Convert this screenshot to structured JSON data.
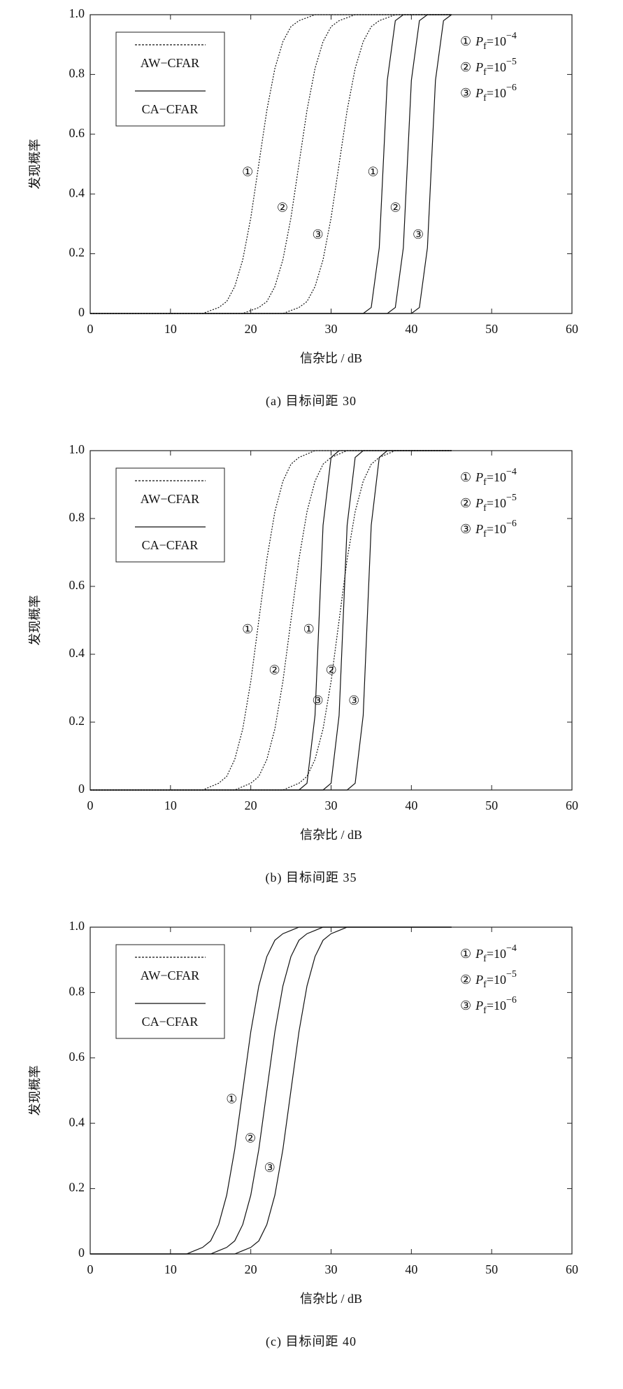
{
  "chart_data": [
    {
      "type": "line",
      "caption": "(a)  目标间距 30",
      "x_label": "信杂比 / dB",
      "y_label": "发现概率",
      "x": [
        0,
        1,
        2,
        3,
        4,
        5,
        6,
        7,
        8,
        9,
        10,
        11,
        12,
        13,
        14,
        15,
        16,
        17,
        18,
        19,
        20,
        21,
        22,
        23,
        24,
        25,
        26,
        27,
        28,
        29,
        30,
        31,
        32,
        33,
        34,
        35,
        36,
        37,
        38,
        39,
        40,
        41,
        42,
        43,
        44,
        45
      ],
      "xlim": [
        0,
        60
      ],
      "xticks": [
        0,
        10,
        20,
        30,
        40,
        50,
        60
      ],
      "ylim": [
        0,
        1
      ],
      "yticks": [
        0,
        0.2,
        0.4,
        0.6,
        0.8,
        {
          "value": 1,
          "label": "1.0"
        }
      ],
      "legend": [
        {
          "text": "AW−CFAR",
          "style": "dashed"
        },
        {
          "text": "CA−CFAR",
          "style": "solid"
        }
      ],
      "pf_legend": [
        {
          "marker": "①",
          "symbol": "P",
          "subscript": "f",
          "base": "=10",
          "exponent": "−4"
        },
        {
          "marker": "②",
          "symbol": "P",
          "subscript": "f",
          "base": "=10",
          "exponent": "−5"
        },
        {
          "marker": "③",
          "symbol": "P",
          "subscript": "f",
          "base": "=10",
          "exponent": "−6"
        }
      ],
      "series": [
        {
          "label": "①",
          "style": "dashed",
          "color": "#111",
          "values": [
            0,
            0,
            0,
            0,
            0,
            0,
            0,
            0,
            0,
            0,
            0,
            0,
            0,
            0,
            0,
            0.01,
            0.02,
            0.04,
            0.09,
            0.18,
            0.32,
            0.5,
            0.68,
            0.82,
            0.91,
            0.96,
            0.98,
            0.99,
            1,
            1,
            1,
            1,
            1,
            1,
            1,
            1,
            1,
            1,
            1,
            1,
            1,
            1,
            1,
            1,
            1,
            1
          ]
        },
        {
          "label": "②",
          "style": "dashed",
          "color": "#111",
          "values": [
            0,
            0,
            0,
            0,
            0,
            0,
            0,
            0,
            0,
            0,
            0,
            0,
            0,
            0,
            0,
            0,
            0,
            0,
            0,
            0,
            0.01,
            0.02,
            0.04,
            0.09,
            0.18,
            0.32,
            0.5,
            0.68,
            0.82,
            0.91,
            0.96,
            0.98,
            0.99,
            1,
            1,
            1,
            1,
            1,
            1,
            1,
            1,
            1,
            1,
            1,
            1,
            1
          ]
        },
        {
          "label": "③",
          "style": "dashed",
          "color": "#111",
          "values": [
            0,
            0,
            0,
            0,
            0,
            0,
            0,
            0,
            0,
            0,
            0,
            0,
            0,
            0,
            0,
            0,
            0,
            0,
            0,
            0,
            0,
            0,
            0,
            0,
            0,
            0.01,
            0.02,
            0.04,
            0.09,
            0.18,
            0.32,
            0.5,
            0.68,
            0.82,
            0.91,
            0.96,
            0.98,
            0.99,
            1,
            1,
            1,
            1,
            1,
            1,
            1,
            1
          ]
        },
        {
          "label": "①",
          "style": "solid",
          "color": "#111",
          "values": [
            0,
            0,
            0,
            0,
            0,
            0,
            0,
            0,
            0,
            0,
            0,
            0,
            0,
            0,
            0,
            0,
            0,
            0,
            0,
            0,
            0,
            0,
            0,
            0,
            0,
            0,
            0,
            0,
            0,
            0,
            0,
            0,
            0,
            0,
            0,
            0.02,
            0.22,
            0.78,
            0.98,
            1,
            1,
            1,
            1,
            1,
            1,
            1
          ]
        },
        {
          "label": "②",
          "style": "solid",
          "color": "#111",
          "values": [
            0,
            0,
            0,
            0,
            0,
            0,
            0,
            0,
            0,
            0,
            0,
            0,
            0,
            0,
            0,
            0,
            0,
            0,
            0,
            0,
            0,
            0,
            0,
            0,
            0,
            0,
            0,
            0,
            0,
            0,
            0,
            0,
            0,
            0,
            0,
            0,
            0,
            0,
            0.02,
            0.22,
            0.78,
            0.98,
            1,
            1,
            1,
            1
          ]
        },
        {
          "label": "③",
          "style": "solid",
          "color": "#111",
          "values": [
            0,
            0,
            0,
            0,
            0,
            0,
            0,
            0,
            0,
            0,
            0,
            0,
            0,
            0,
            0,
            0,
            0,
            0,
            0,
            0,
            0,
            0,
            0,
            0,
            0,
            0,
            0,
            0,
            0,
            0,
            0,
            0,
            0,
            0,
            0,
            0,
            0,
            0,
            0,
            0,
            0,
            0.02,
            0.22,
            0.78,
            0.98,
            1
          ]
        }
      ]
    },
    {
      "type": "line",
      "caption": "(b)  目标间距 35",
      "x_label": "信杂比 / dB",
      "y_label": "发现概率",
      "x": [
        0,
        1,
        2,
        3,
        4,
        5,
        6,
        7,
        8,
        9,
        10,
        11,
        12,
        13,
        14,
        15,
        16,
        17,
        18,
        19,
        20,
        21,
        22,
        23,
        24,
        25,
        26,
        27,
        28,
        29,
        30,
        31,
        32,
        33,
        34,
        35,
        36,
        37,
        38,
        39,
        40,
        41,
        42,
        43,
        44,
        45
      ],
      "xlim": [
        0,
        60
      ],
      "xticks": [
        0,
        10,
        20,
        30,
        40,
        50,
        60
      ],
      "ylim": [
        0,
        1
      ],
      "yticks": [
        0,
        0.2,
        0.4,
        0.6,
        0.8,
        {
          "value": 1,
          "label": "1.0"
        }
      ],
      "legend": [
        {
          "text": "AW−CFAR",
          "style": "dashed"
        },
        {
          "text": "CA−CFAR",
          "style": "solid"
        }
      ],
      "pf_legend": [
        {
          "marker": "①",
          "symbol": "P",
          "subscript": "f",
          "base": "=10",
          "exponent": "−4"
        },
        {
          "marker": "②",
          "symbol": "P",
          "subscript": "f",
          "base": "=10",
          "exponent": "−5"
        },
        {
          "marker": "③",
          "symbol": "P",
          "subscript": "f",
          "base": "=10",
          "exponent": "−6"
        }
      ],
      "series": [
        {
          "label": "①",
          "style": "dashed",
          "color": "#111",
          "values": [
            0,
            0,
            0,
            0,
            0,
            0,
            0,
            0,
            0,
            0,
            0,
            0,
            0,
            0,
            0,
            0.01,
            0.02,
            0.04,
            0.09,
            0.18,
            0.32,
            0.5,
            0.68,
            0.82,
            0.91,
            0.96,
            0.98,
            0.99,
            1,
            1,
            1,
            1,
            1,
            1,
            1,
            1,
            1,
            1,
            1,
            1,
            1,
            1,
            1,
            1,
            1,
            1
          ]
        },
        {
          "label": "②",
          "style": "dashed",
          "color": "#111",
          "values": [
            0,
            0,
            0,
            0,
            0,
            0,
            0,
            0,
            0,
            0,
            0,
            0,
            0,
            0,
            0,
            0,
            0,
            0,
            0,
            0.01,
            0.02,
            0.04,
            0.09,
            0.18,
            0.32,
            0.5,
            0.68,
            0.82,
            0.91,
            0.96,
            0.98,
            0.99,
            1,
            1,
            1,
            1,
            1,
            1,
            1,
            1,
            1,
            1,
            1,
            1,
            1,
            1
          ]
        },
        {
          "label": "③",
          "style": "dashed",
          "color": "#111",
          "values": [
            0,
            0,
            0,
            0,
            0,
            0,
            0,
            0,
            0,
            0,
            0,
            0,
            0,
            0,
            0,
            0,
            0,
            0,
            0,
            0,
            0,
            0,
            0,
            0,
            0,
            0.01,
            0.02,
            0.04,
            0.09,
            0.18,
            0.32,
            0.5,
            0.68,
            0.82,
            0.91,
            0.96,
            0.98,
            0.99,
            1,
            1,
            1,
            1,
            1,
            1,
            1,
            1
          ]
        },
        {
          "label": "①",
          "style": "solid",
          "color": "#111",
          "values": [
            0,
            0,
            0,
            0,
            0,
            0,
            0,
            0,
            0,
            0,
            0,
            0,
            0,
            0,
            0,
            0,
            0,
            0,
            0,
            0,
            0,
            0,
            0,
            0,
            0,
            0,
            0,
            0.02,
            0.22,
            0.78,
            0.98,
            1,
            1,
            1,
            1,
            1,
            1,
            1,
            1,
            1,
            1,
            1,
            1,
            1,
            1,
            1
          ]
        },
        {
          "label": "②",
          "style": "solid",
          "color": "#111",
          "values": [
            0,
            0,
            0,
            0,
            0,
            0,
            0,
            0,
            0,
            0,
            0,
            0,
            0,
            0,
            0,
            0,
            0,
            0,
            0,
            0,
            0,
            0,
            0,
            0,
            0,
            0,
            0,
            0,
            0,
            0,
            0.02,
            0.22,
            0.78,
            0.98,
            1,
            1,
            1,
            1,
            1,
            1,
            1,
            1,
            1,
            1,
            1,
            1
          ]
        },
        {
          "label": "③",
          "style": "solid",
          "color": "#111",
          "values": [
            0,
            0,
            0,
            0,
            0,
            0,
            0,
            0,
            0,
            0,
            0,
            0,
            0,
            0,
            0,
            0,
            0,
            0,
            0,
            0,
            0,
            0,
            0,
            0,
            0,
            0,
            0,
            0,
            0,
            0,
            0,
            0,
            0,
            0.02,
            0.22,
            0.78,
            0.98,
            1,
            1,
            1,
            1,
            1,
            1,
            1,
            1,
            1
          ]
        }
      ]
    },
    {
      "type": "line",
      "caption": "(c)  目标间距 40",
      "x_label": "信杂比 / dB",
      "y_label": "发现概率",
      "x": [
        0,
        1,
        2,
        3,
        4,
        5,
        6,
        7,
        8,
        9,
        10,
        11,
        12,
        13,
        14,
        15,
        16,
        17,
        18,
        19,
        20,
        21,
        22,
        23,
        24,
        25,
        26,
        27,
        28,
        29,
        30,
        31,
        32,
        33,
        34,
        35,
        36,
        37,
        38,
        39,
        40,
        41,
        42,
        43,
        44,
        45
      ],
      "xlim": [
        0,
        60
      ],
      "xticks": [
        0,
        10,
        20,
        30,
        40,
        50,
        60
      ],
      "ylim": [
        0,
        1
      ],
      "yticks": [
        0,
        0.2,
        0.4,
        0.6,
        0.8,
        {
          "value": 1,
          "label": "1.0"
        }
      ],
      "legend": [
        {
          "text": "AW−CFAR",
          "style": "dashed"
        },
        {
          "text": "CA−CFAR",
          "style": "solid"
        }
      ],
      "pf_legend": [
        {
          "marker": "①",
          "symbol": "P",
          "subscript": "f",
          "base": "=10",
          "exponent": "−4"
        },
        {
          "marker": "②",
          "symbol": "P",
          "subscript": "f",
          "base": "=10",
          "exponent": "−5"
        },
        {
          "marker": "③",
          "symbol": "P",
          "subscript": "f",
          "base": "=10",
          "exponent": "−6"
        }
      ],
      "series": [
        {
          "label": "①",
          "style": "solid",
          "color": "#111",
          "values": [
            0,
            0,
            0,
            0,
            0,
            0,
            0,
            0,
            0,
            0,
            0,
            0,
            0,
            0.01,
            0.02,
            0.04,
            0.09,
            0.18,
            0.32,
            0.5,
            0.68,
            0.82,
            0.91,
            0.96,
            0.98,
            0.99,
            1,
            1,
            1,
            1,
            1,
            1,
            1,
            1,
            1,
            1,
            1,
            1,
            1,
            1,
            1,
            1,
            1,
            1,
            1,
            1
          ]
        },
        {
          "label": "②",
          "style": "solid",
          "color": "#111",
          "values": [
            0,
            0,
            0,
            0,
            0,
            0,
            0,
            0,
            0,
            0,
            0,
            0,
            0,
            0,
            0,
            0,
            0.01,
            0.02,
            0.04,
            0.09,
            0.18,
            0.32,
            0.5,
            0.68,
            0.82,
            0.91,
            0.96,
            0.98,
            0.99,
            1,
            1,
            1,
            1,
            1,
            1,
            1,
            1,
            1,
            1,
            1,
            1,
            1,
            1,
            1,
            1,
            1
          ]
        },
        {
          "label": "③",
          "style": "solid",
          "color": "#111",
          "values": [
            0,
            0,
            0,
            0,
            0,
            0,
            0,
            0,
            0,
            0,
            0,
            0,
            0,
            0,
            0,
            0,
            0,
            0,
            0,
            0.01,
            0.02,
            0.04,
            0.09,
            0.18,
            0.32,
            0.5,
            0.68,
            0.82,
            0.91,
            0.96,
            0.98,
            0.99,
            1,
            1,
            1,
            1,
            1,
            1,
            1,
            1,
            1,
            1,
            1,
            1,
            1,
            1
          ]
        }
      ]
    }
  ]
}
